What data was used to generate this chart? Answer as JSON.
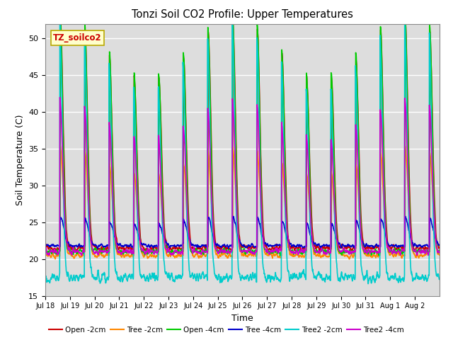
{
  "title": "Tonzi Soil CO2 Profile: Upper Temperatures",
  "xlabel": "Time",
  "ylabel": "Soil Temperature (C)",
  "ylim": [
    15,
    52
  ],
  "yticks": [
    15,
    20,
    25,
    30,
    35,
    40,
    45,
    50
  ],
  "label_box": "TZ_soilco2",
  "series_order": [
    "Open -2cm",
    "Tree -2cm",
    "Open -4cm",
    "Tree -4cm",
    "Tree2 -2cm",
    "Tree2 -4cm"
  ],
  "colors": {
    "Open -2cm": "#cc0000",
    "Tree -2cm": "#ff8800",
    "Open -4cm": "#00cc00",
    "Tree -4cm": "#0000cc",
    "Tree2 -2cm": "#00cccc",
    "Tree2 -4cm": "#cc00cc"
  },
  "x_tick_labels": [
    "Jul 18",
    "Jul 19",
    "Jul 20",
    "Jul 21",
    "Jul 22",
    "Jul 23",
    "Jul 24",
    "Jul 25",
    "Jul 26",
    "Jul 27",
    "Jul 28",
    "Jul 29",
    "Jul 30",
    "Jul 31",
    "Aug 1",
    "Aug 2"
  ],
  "n_days": 16,
  "pts_per_day": 144,
  "bg_color": "#ffffff",
  "plot_bg": "#dddddd",
  "grid_color": "#ffffff"
}
